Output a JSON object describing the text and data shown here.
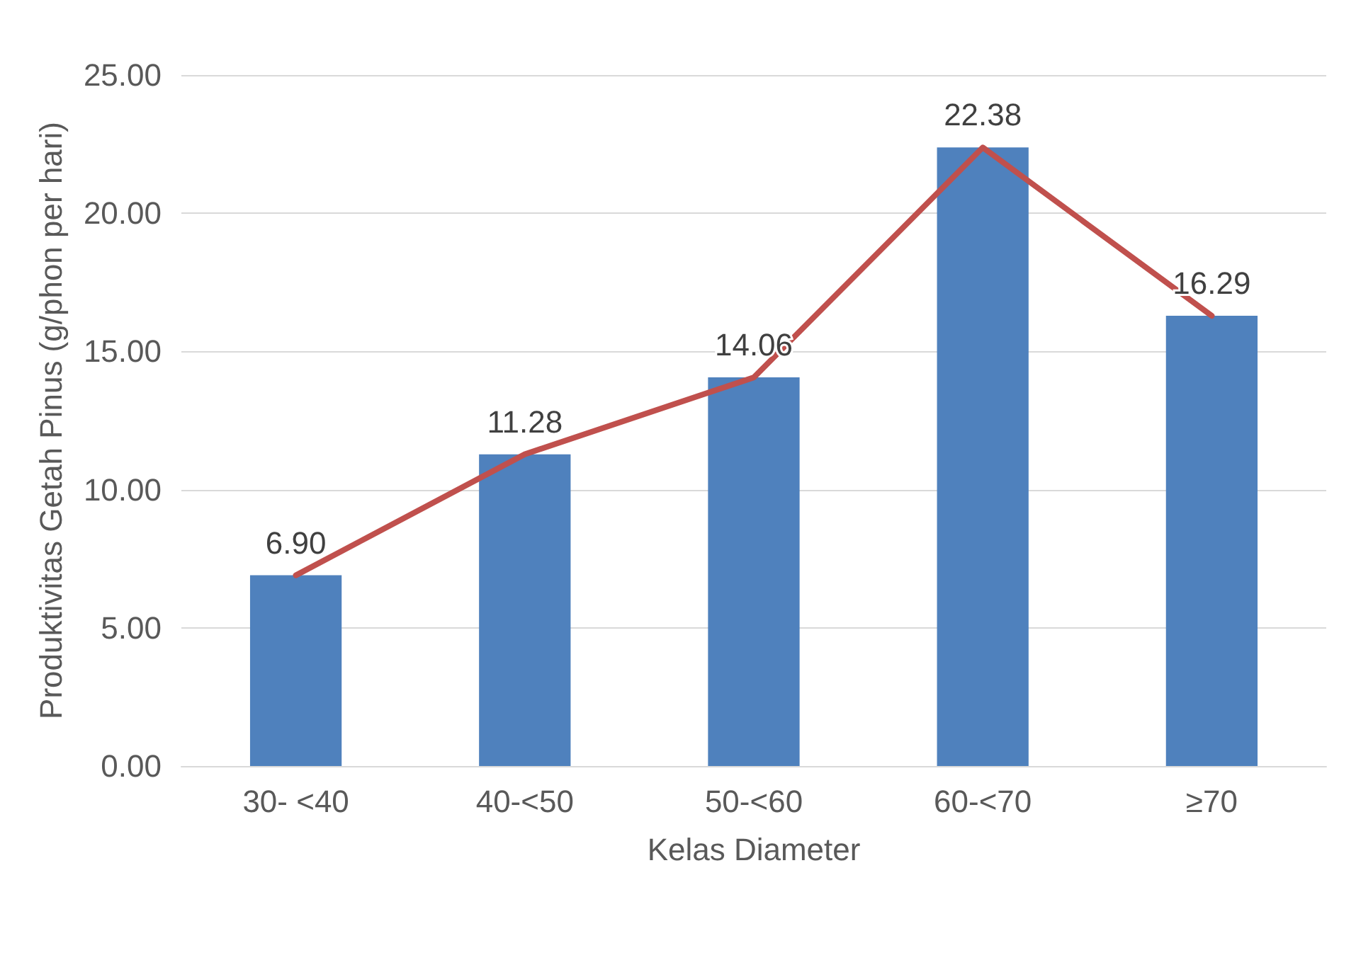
{
  "chart_data": {
    "type": "bar",
    "xlabel": "Kelas Diameter",
    "ylabel": "Produktivitas Getah Pinus (g/phon per hari)",
    "categories": [
      "30- <40",
      "40-<50",
      "50-<60",
      "60-<70",
      "≥70"
    ],
    "series": [
      {
        "color": "#4f81bd",
        "values": [
          6.9,
          11.28,
          14.06,
          22.38,
          16.29
        ]
      },
      {
        "type": "line",
        "color": "#c0504d",
        "values": [
          6.9,
          11.28,
          14.06,
          22.38,
          16.29
        ],
        "value_labels": [
          "6.90",
          "11.28",
          "14.06",
          "22.38",
          "16.29"
        ],
        "marker": "none",
        "line_style": "solid"
      }
    ],
    "ylim": [
      0,
      25
    ],
    "yticks": [
      {
        "value": 0,
        "label": "0.00"
      },
      {
        "value": 5,
        "label": "5.00"
      },
      {
        "value": 10,
        "label": "10.00"
      },
      {
        "value": 15,
        "label": "15.00"
      },
      {
        "value": 20,
        "label": "20.00"
      },
      {
        "value": 25,
        "label": "25.00"
      }
    ],
    "grid": "y"
  }
}
